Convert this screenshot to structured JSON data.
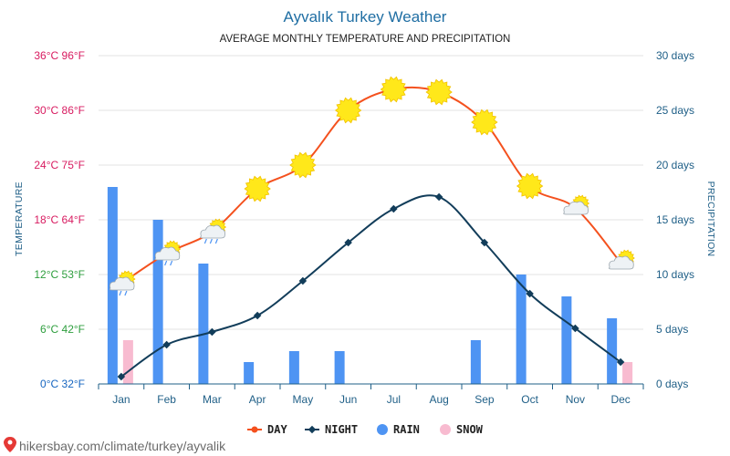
{
  "header": {
    "title": "Ayvalık Turkey Weather",
    "subtitle": "AVERAGE MONTHLY TEMPERATURE AND PRECIPITATION"
  },
  "axes": {
    "left_title": "TEMPERATURE",
    "right_title": "PRECIPITATION",
    "left_ticks": [
      {
        "c": 0,
        "label": "0°C 32°F",
        "color": "#1565c0"
      },
      {
        "c": 6,
        "label": "6°C 42°F",
        "color": "#2e9e3e"
      },
      {
        "c": 12,
        "label": "12°C 53°F",
        "color": "#2e9e3e"
      },
      {
        "c": 18,
        "label": "18°C 64°F",
        "color": "#d81b60"
      },
      {
        "c": 24,
        "label": "24°C 75°F",
        "color": "#d81b60"
      },
      {
        "c": 30,
        "label": "30°C 86°F",
        "color": "#d81b60"
      },
      {
        "c": 36,
        "label": "36°C 96°F",
        "color": "#d81b60"
      }
    ],
    "right_ticks": [
      {
        "d": 0,
        "label": "0 days"
      },
      {
        "d": 5,
        "label": "5 days"
      },
      {
        "d": 10,
        "label": "10 days"
      },
      {
        "d": 15,
        "label": "15 days"
      },
      {
        "d": 20,
        "label": "20 days"
      },
      {
        "d": 25,
        "label": "25 days"
      },
      {
        "d": 30,
        "label": "30 days"
      }
    ]
  },
  "legend": {
    "day": "DAY",
    "night": "NIGHT",
    "rain": "RAIN",
    "snow": "SNOW"
  },
  "footer": {
    "source": "hikersbay.com/climate/turkey/ayvalik"
  },
  "colors": {
    "day": "#f4511e",
    "night": "#123d5a",
    "rain": "#4e94f3",
    "snow": "#f8bbd0",
    "grid": "#e3e3e3",
    "sun": "#ffe81a"
  },
  "chart_data": {
    "type": "line",
    "categories": [
      "Jan",
      "Feb",
      "Mar",
      "Apr",
      "May",
      "Jun",
      "Jul",
      "Aug",
      "Sep",
      "Oct",
      "Nov",
      "Dec"
    ],
    "temperature_ylim": [
      0,
      36
    ],
    "precipitation_ylim": [
      0,
      30
    ],
    "series": [
      {
        "name": "DAY",
        "unit": "°C",
        "values": [
          11,
          14.3,
          16.7,
          21.4,
          24,
          30,
          32.3,
          32,
          28.7,
          21.7,
          19.3,
          13.3
        ]
      },
      {
        "name": "NIGHT",
        "unit": "°C",
        "values": [
          0.8,
          4.3,
          5.7,
          7.5,
          11.3,
          15.5,
          19.2,
          20.5,
          15.5,
          9.9,
          6.1,
          2.4
        ]
      },
      {
        "name": "RAIN",
        "unit": "days",
        "values": [
          18,
          15,
          11,
          2,
          3,
          3,
          0,
          0,
          4,
          10,
          8,
          6
        ]
      },
      {
        "name": "SNOW",
        "unit": "days",
        "values": [
          4,
          0,
          0,
          0,
          0,
          0,
          0,
          0,
          0,
          0,
          0,
          2
        ]
      }
    ],
    "day_icons": [
      "sun-cloud-rain",
      "sun-cloud-rain",
      "sun-cloud-rain",
      "sun",
      "sun",
      "sun",
      "sun",
      "sun",
      "sun",
      "sun",
      "sun-cloud",
      "sun-cloud"
    ],
    "grid": true,
    "legend_position": "bottom-center"
  }
}
